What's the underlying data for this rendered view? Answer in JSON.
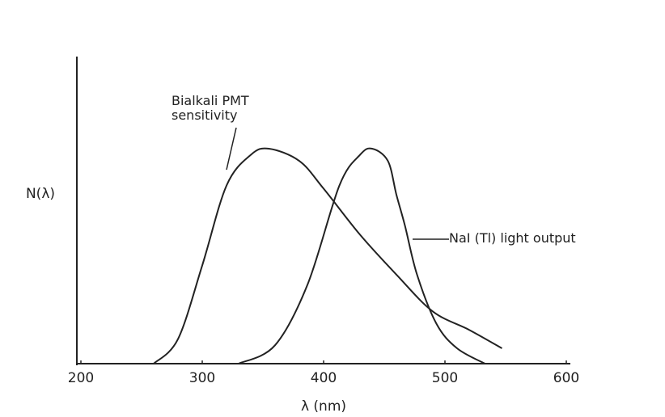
{
  "chart_data": {
    "type": "line",
    "x_label": "λ (nm)",
    "y_label": "N(λ)",
    "xlim": [
      200,
      600
    ],
    "xticks": [
      200,
      300,
      400,
      500,
      600
    ],
    "ylim": [
      0,
      1
    ],
    "series": [
      {
        "name": "Bialkali PMT sensitivity",
        "color": "#222222",
        "x": [
          260,
          280,
          300,
          320,
          340,
          355,
          380,
          400,
          430,
          460,
          490,
          520,
          547
        ],
        "values": [
          0.0,
          0.08,
          0.32,
          0.58,
          0.68,
          0.7,
          0.66,
          0.57,
          0.42,
          0.29,
          0.17,
          0.11,
          0.05
        ]
      },
      {
        "name": "NaI (Tl) light output",
        "color": "#222222",
        "x": [
          330,
          360,
          387,
          413,
          430,
          440,
          453,
          460,
          467,
          477,
          493,
          510,
          533
        ],
        "values": [
          0.0,
          0.06,
          0.26,
          0.58,
          0.68,
          0.7,
          0.66,
          0.55,
          0.45,
          0.29,
          0.13,
          0.05,
          0.0
        ]
      }
    ]
  }
}
